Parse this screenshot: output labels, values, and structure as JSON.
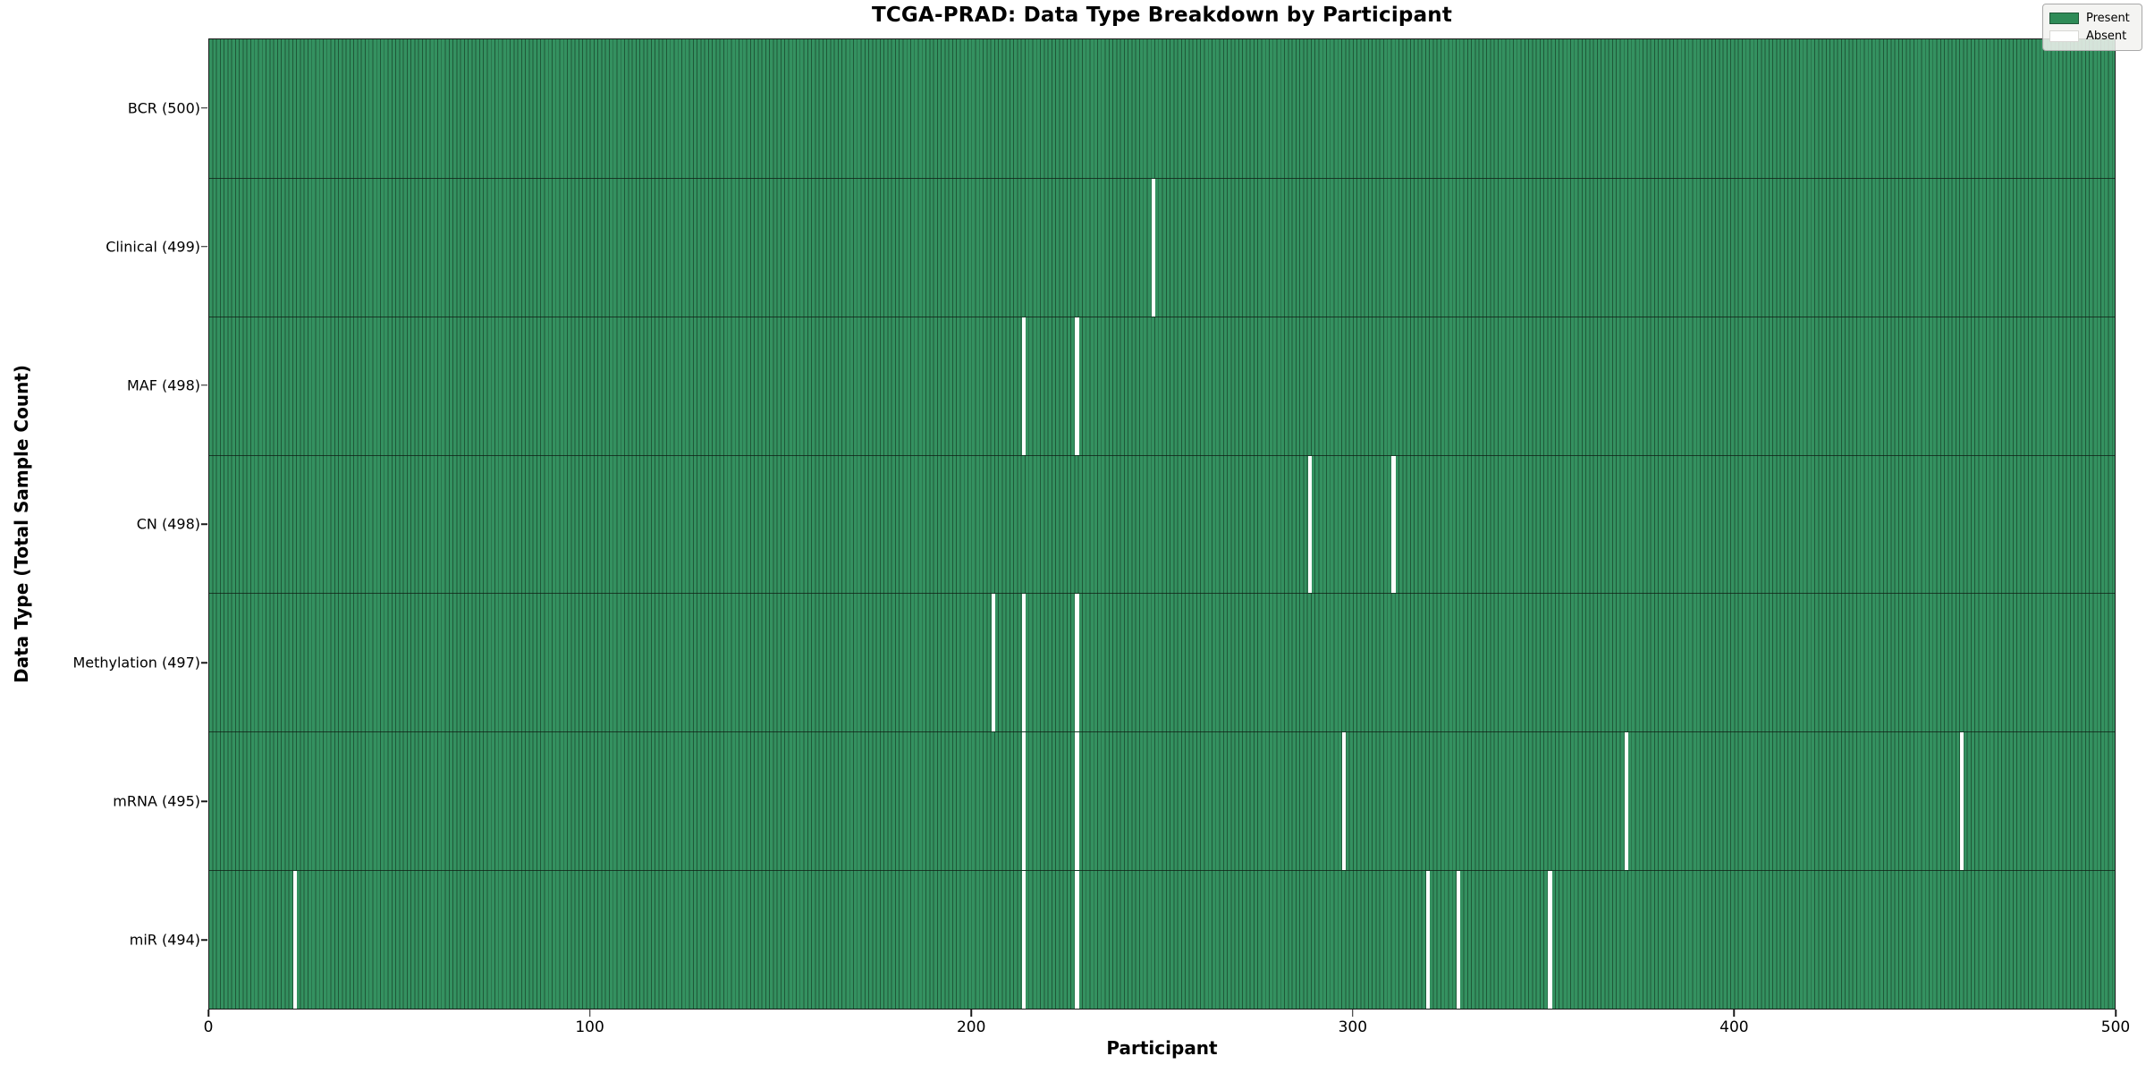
{
  "title": "TCGA-PRAD: Data Type Breakdown by Participant",
  "xlabel": "Participant",
  "ylabel": "Data Type (Total Sample Count)",
  "legend": {
    "present_label": "Present",
    "absent_label": "Absent"
  },
  "colors": {
    "present": "#2e8b57",
    "present_edge": "#1f5838",
    "absent": "#ffffff",
    "text": "#000000",
    "legend_bg": "#f2f2f0"
  },
  "x_ticks": [
    "0",
    "100",
    "200",
    "300",
    "400",
    "500"
  ],
  "chart_data": {
    "type": "heatmap",
    "title": "TCGA-PRAD: Data Type Breakdown by Participant",
    "xlabel": "Participant",
    "ylabel": "Data Type (Total Sample Count)",
    "x_range": [
      0,
      500
    ],
    "n_participants": 500,
    "x_tick_values": [
      0,
      100,
      200,
      300,
      400,
      500
    ],
    "legend_entries": [
      "Present",
      "Absent"
    ],
    "legend_position": "upper right",
    "grid": false,
    "rows": [
      {
        "label": "BCR (500)",
        "data_type": "BCR",
        "present_count": 500,
        "absent_participants": []
      },
      {
        "label": "Clinical (499)",
        "data_type": "Clinical",
        "present_count": 499,
        "absent_participants": [
          247
        ]
      },
      {
        "label": "MAF (498)",
        "data_type": "MAF",
        "present_count": 498,
        "absent_participants": [
          213,
          227
        ]
      },
      {
        "label": "CN (498)",
        "data_type": "CN",
        "present_count": 498,
        "absent_participants": [
          288,
          310
        ]
      },
      {
        "label": "Methylation (497)",
        "data_type": "Methylation",
        "present_count": 497,
        "absent_participants": [
          205,
          213,
          227
        ]
      },
      {
        "label": "mRNA (495)",
        "data_type": "mRNA",
        "present_count": 495,
        "absent_participants": [
          213,
          227,
          297,
          371,
          459
        ]
      },
      {
        "label": "miR (494)",
        "data_type": "miR",
        "present_count": 494,
        "absent_participants": [
          22,
          213,
          227,
          319,
          327,
          351
        ]
      }
    ]
  }
}
